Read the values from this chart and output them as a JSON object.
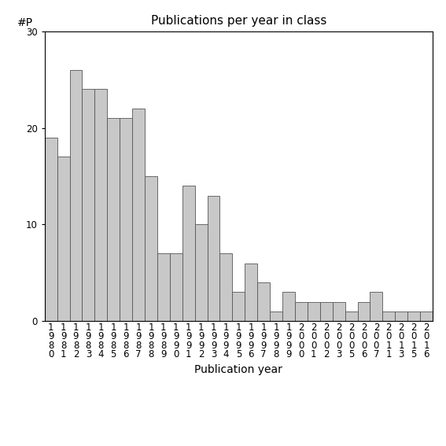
{
  "title": "Publications per year in class",
  "xlabel": "Publication year",
  "ylabel": "#P",
  "bar_color": "#c8c8c8",
  "bar_edgecolor": "#555555",
  "ylim": [
    0,
    30
  ],
  "yticks": [
    0,
    10,
    20,
    30
  ],
  "categories": [
    "1\n9\n8\n0",
    "1\n9\n8\n1",
    "1\n9\n8\n2",
    "1\n9\n8\n3",
    "1\n9\n8\n4",
    "1\n9\n8\n5",
    "1\n9\n8\n6",
    "1\n9\n8\n7",
    "1\n9\n8\n8",
    "1\n9\n8\n9",
    "1\n9\n9\n0",
    "1\n9\n9\n1",
    "1\n9\n9\n2",
    "1\n9\n9\n3",
    "1\n9\n9\n4",
    "1\n9\n9\n5",
    "1\n9\n9\n6",
    "1\n9\n9\n7",
    "1\n9\n9\n8",
    "1\n9\n9\n9",
    "2\n0\n0\n0",
    "2\n0\n0\n1",
    "2\n0\n0\n2",
    "2\n0\n0\n3",
    "2\n0\n0\n5",
    "2\n0\n0\n6",
    "2\n0\n0\n7",
    "2\n0\n1\n1",
    "2\n0\n1\n3",
    "2\n0\n1\n5",
    "2\n0\n1\n6"
  ],
  "values": [
    19,
    17,
    26,
    24,
    24,
    21,
    21,
    22,
    15,
    7,
    7,
    14,
    10,
    13,
    7,
    3,
    6,
    4,
    1,
    3,
    2,
    2,
    2,
    2,
    1,
    2,
    3,
    1,
    1,
    1,
    1
  ],
  "title_fontsize": 11,
  "xlabel_fontsize": 10,
  "ylabel_fontsize": 10,
  "tick_labelsize": 8.5
}
